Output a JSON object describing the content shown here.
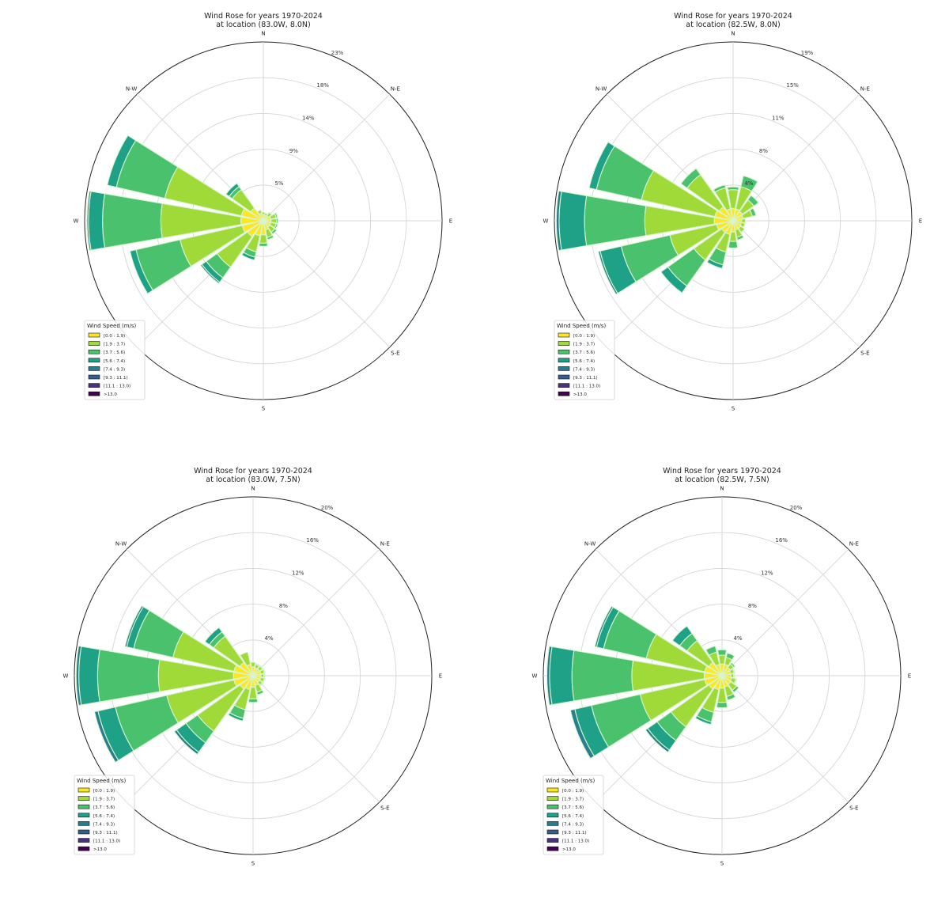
{
  "chart_data": [
    {
      "type": "polar-bar",
      "title": [
        "Wind Rose for years 1970-2024",
        "at location (83.0W, 8.0N)"
      ],
      "rmax": 23,
      "ring_labels": [
        "5%",
        "9%",
        "14%",
        "18%",
        "23%"
      ],
      "compass_labels": [
        {
          "label": "N",
          "deg": 0
        },
        {
          "label": "N-E",
          "deg": 45
        },
        {
          "label": "E",
          "deg": 90
        },
        {
          "label": "S-E",
          "deg": 135
        },
        {
          "label": "S",
          "deg": 180
        },
        {
          "label": "W",
          "deg": 270
        },
        {
          "label": "N-W",
          "deg": 315
        }
      ],
      "sectors": [
        {
          "dir": "N",
          "values": [
            0.8,
            0.3
          ]
        },
        {
          "dir": "NNE",
          "values": [
            0.7,
            0.3
          ]
        },
        {
          "dir": "NE",
          "values": [
            0.8,
            0.5
          ]
        },
        {
          "dir": "ENE",
          "values": [
            1.0,
            0.7,
            0.2
          ]
        },
        {
          "dir": "E",
          "values": [
            1.0,
            0.7,
            0.2
          ]
        },
        {
          "dir": "ESE",
          "values": [
            1.0,
            0.7,
            0.2
          ]
        },
        {
          "dir": "SE",
          "values": [
            1.0,
            0.8,
            0.3
          ]
        },
        {
          "dir": "SSE",
          "values": [
            1.2,
            1.0,
            0.3
          ]
        },
        {
          "dir": "S",
          "values": [
            1.8,
            1.1,
            0.4
          ]
        },
        {
          "dir": "SSW",
          "values": [
            2.0,
            2.1,
            0.7,
            0.4
          ]
        },
        {
          "dir": "SW",
          "values": [
            2.5,
            4.8,
            1.7,
            0.7,
            0.2
          ]
        },
        {
          "dir": "WSW",
          "values": [
            2.8,
            8.2,
            5.8,
            0.8
          ]
        },
        {
          "dir": "W",
          "values": [
            2.9,
            10.3,
            7.5,
            1.8,
            0.2
          ]
        },
        {
          "dir": "WNW",
          "values": [
            2.9,
            10.1,
            6.4,
            1.2
          ]
        },
        {
          "dir": "NW",
          "values": [
            2.0,
            2.9,
            0.5,
            0.5
          ]
        },
        {
          "dir": "NNW",
          "values": [
            1.0,
            0.4
          ]
        }
      ]
    },
    {
      "type": "polar-bar",
      "title": [
        "Wind Rose for years 1970-2024",
        "at location (82.5W, 8.0N)"
      ],
      "rmax": 19,
      "ring_labels": [
        "4%",
        "8%",
        "11%",
        "15%",
        "19%"
      ],
      "compass_labels": [
        {
          "label": "N",
          "deg": 0
        },
        {
          "label": "N-E",
          "deg": 45
        },
        {
          "label": "E",
          "deg": 90
        },
        {
          "label": "S-E",
          "deg": 135
        },
        {
          "label": "S",
          "deg": 180
        },
        {
          "label": "W",
          "deg": 270
        },
        {
          "label": "N-W",
          "deg": 315
        }
      ],
      "sectors": [
        {
          "dir": "N",
          "values": [
            1.3,
            2.0,
            0.3
          ]
        },
        {
          "dir": "NNE",
          "values": [
            1.3,
            2.4,
            1.2
          ]
        },
        {
          "dir": "NE",
          "values": [
            1.2,
            1.5,
            0.6
          ]
        },
        {
          "dir": "ENE",
          "values": [
            1.1,
            1.0,
            0.4
          ]
        },
        {
          "dir": "E",
          "values": [
            0.9,
            0.4
          ]
        },
        {
          "dir": "ESE",
          "values": [
            0.9,
            0.4
          ]
        },
        {
          "dir": "SE",
          "values": [
            1.0,
            0.5
          ]
        },
        {
          "dir": "SSE",
          "values": [
            1.0,
            0.8,
            0.3
          ]
        },
        {
          "dir": "S",
          "values": [
            1.2,
            1.0,
            0.7
          ]
        },
        {
          "dir": "SSW",
          "values": [
            1.5,
            1.9,
            1.4,
            0.4
          ]
        },
        {
          "dir": "SW",
          "values": [
            1.5,
            3.6,
            3.4,
            0.9
          ]
        },
        {
          "dir": "WSW",
          "values": [
            1.8,
            5.1,
            5.3,
            2.3,
            0.2
          ]
        },
        {
          "dir": "W",
          "values": [
            2.0,
            7.4,
            6.4,
            2.7,
            0.3
          ]
        },
        {
          "dir": "WNW",
          "values": [
            2.0,
            8.0,
            4.9,
            0.8
          ]
        },
        {
          "dir": "NW",
          "values": [
            1.8,
            4.2,
            0.8
          ]
        },
        {
          "dir": "NNW",
          "values": [
            1.3,
            2.3,
            0.3
          ]
        }
      ]
    },
    {
      "type": "polar-bar",
      "title": [
        "Wind Rose for years 1970-2024",
        "at location (83.0W, 7.5N)"
      ],
      "rmax": 20,
      "ring_labels": [
        "4%",
        "8%",
        "12%",
        "16%",
        "20%"
      ],
      "compass_labels": [
        {
          "label": "N",
          "deg": 0
        },
        {
          "label": "N-E",
          "deg": 45
        },
        {
          "label": "E",
          "deg": 90
        },
        {
          "label": "S-E",
          "deg": 135
        },
        {
          "label": "S",
          "deg": 180
        },
        {
          "label": "W",
          "deg": 270
        },
        {
          "label": "N-W",
          "deg": 315
        }
      ],
      "sectors": [
        {
          "dir": "N",
          "values": [
            1.0,
            0.5
          ]
        },
        {
          "dir": "NNE",
          "values": [
            0.9,
            0.4,
            0.1
          ]
        },
        {
          "dir": "NE",
          "values": [
            0.9,
            0.4,
            0.1
          ]
        },
        {
          "dir": "ENE",
          "values": [
            0.9,
            0.4,
            0.1
          ]
        },
        {
          "dir": "E",
          "values": [
            0.9,
            0.3,
            0.1
          ]
        },
        {
          "dir": "ESE",
          "values": [
            0.9,
            0.4,
            0.1
          ]
        },
        {
          "dir": "SE",
          "values": [
            0.9,
            0.4,
            0.1
          ]
        },
        {
          "dir": "SSE",
          "values": [
            1.1,
            0.8,
            0.3
          ]
        },
        {
          "dir": "S",
          "values": [
            1.3,
            1.3,
            0.4
          ]
        },
        {
          "dir": "SSW",
          "values": [
            1.6,
            2.3,
            1.0,
            0.3
          ]
        },
        {
          "dir": "SW",
          "values": [
            1.8,
            5.8,
            1.6,
            1.3,
            0.3
          ]
        },
        {
          "dir": "WSW",
          "values": [
            2.2,
            7.7,
            5.9,
            2.0,
            0.4
          ]
        },
        {
          "dir": "W",
          "values": [
            2.2,
            8.4,
            6.8,
            2.1,
            0.3
          ]
        },
        {
          "dir": "WNW",
          "values": [
            2.2,
            7.0,
            4.5,
            0.8,
            0.2
          ]
        },
        {
          "dir": "NW",
          "values": [
            1.8,
            3.6,
            0.6,
            0.6
          ]
        },
        {
          "dir": "NNW",
          "values": [
            1.3,
            1.4
          ]
        }
      ]
    },
    {
      "type": "polar-bar",
      "title": [
        "Wind Rose for years 1970-2024",
        "at location (82.5W, 7.5N)"
      ],
      "rmax": 20,
      "ring_labels": [
        "4%",
        "8%",
        "12%",
        "16%",
        "20%"
      ],
      "compass_labels": [
        {
          "label": "N",
          "deg": 0
        },
        {
          "label": "N-E",
          "deg": 45
        },
        {
          "label": "E",
          "deg": 90
        },
        {
          "label": "S-E",
          "deg": 135
        },
        {
          "label": "S",
          "deg": 180
        },
        {
          "label": "W",
          "deg": 270
        },
        {
          "label": "N-W",
          "deg": 315
        }
      ],
      "sectors": [
        {
          "dir": "N",
          "values": [
            1.3,
            1.0,
            0.6
          ]
        },
        {
          "dir": "NNE",
          "values": [
            1.3,
            0.8,
            0.5
          ]
        },
        {
          "dir": "NE",
          "values": [
            1.1,
            0.5,
            0.2
          ]
        },
        {
          "dir": "ENE",
          "values": [
            1.0,
            0.4,
            0.1
          ]
        },
        {
          "dir": "E",
          "values": [
            1.0,
            0.3,
            0.1
          ]
        },
        {
          "dir": "ESE",
          "values": [
            1.1,
            0.5,
            0.1
          ]
        },
        {
          "dir": "SE",
          "values": [
            1.2,
            0.8,
            0.3
          ]
        },
        {
          "dir": "SSE",
          "values": [
            1.3,
            1.1,
            0.4
          ]
        },
        {
          "dir": "S",
          "values": [
            1.4,
            1.6,
            0.6
          ]
        },
        {
          "dir": "SSW",
          "values": [
            1.6,
            2.6,
            1.1,
            0.3
          ]
        },
        {
          "dir": "SW",
          "values": [
            1.8,
            5.2,
            1.9,
            1.3,
            0.3
          ]
        },
        {
          "dir": "WSW",
          "values": [
            2.0,
            7.4,
            5.6,
            1.9,
            0.5
          ]
        },
        {
          "dir": "W",
          "values": [
            2.0,
            8.1,
            6.7,
            2.5,
            0.3
          ]
        },
        {
          "dir": "WNW",
          "values": [
            2.0,
            6.7,
            4.9,
            0.8,
            0.2
          ]
        },
        {
          "dir": "NW",
          "values": [
            1.8,
            3.0,
            1.0,
            1.0
          ]
        },
        {
          "dir": "NNW",
          "values": [
            1.3,
            1.4,
            0.7
          ]
        }
      ]
    }
  ],
  "legend": {
    "title": "Wind Speed (m/s)",
    "bins": [
      "[0.0 : 1.9)",
      "[1.9 : 3.7)",
      "[3.7 : 5.6)",
      "[5.6 : 7.4)",
      "[7.4 : 9.3)",
      "[9.3 : 11.1)",
      "[11.1 : 13.0)",
      ">13.0"
    ],
    "colors": [
      "#fde725",
      "#a0da39",
      "#4ac16d",
      "#1fa187",
      "#277f8e",
      "#365c8d",
      "#46327e",
      "#440154"
    ]
  }
}
